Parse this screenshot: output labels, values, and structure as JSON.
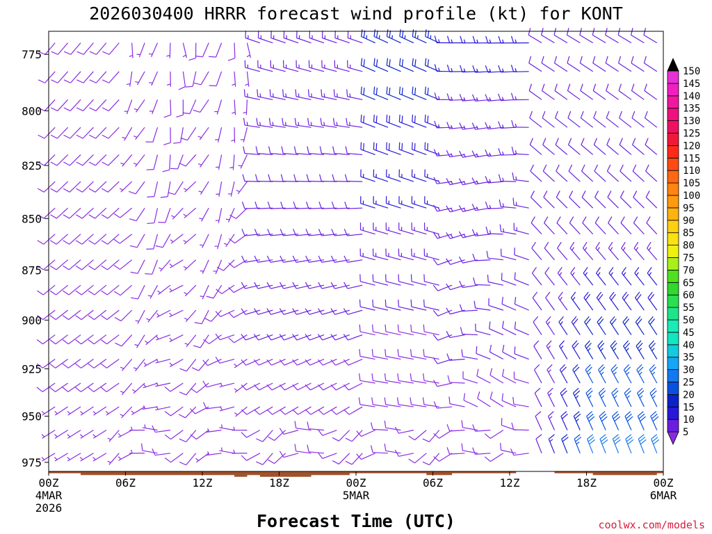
{
  "chart_data": {
    "type": "wind_barb_profile",
    "title": "2026030400 HRRR forecast wind profile (kt) for KONT",
    "xlabel": "Forecast Time (UTC)",
    "credit": "coolwx.com/models",
    "y_unit": "hPa",
    "ylim": [
      980,
      765
    ],
    "y_ticks": [
      775,
      800,
      825,
      850,
      875,
      900,
      925,
      950,
      975
    ],
    "xlim_hours": [
      0,
      48
    ],
    "x_ticks": [
      {
        "hour": 0,
        "lines": [
          "00Z",
          "4MAR",
          "2026"
        ]
      },
      {
        "hour": 6,
        "lines": [
          "06Z"
        ]
      },
      {
        "hour": 12,
        "lines": [
          "12Z"
        ]
      },
      {
        "hour": 18,
        "lines": [
          "18Z"
        ]
      },
      {
        "hour": 24,
        "lines": [
          "00Z",
          "5MAR"
        ]
      },
      {
        "hour": 30,
        "lines": [
          "06Z"
        ]
      },
      {
        "hour": 36,
        "lines": [
          "12Z"
        ]
      },
      {
        "hour": 42,
        "lines": [
          "18Z"
        ]
      },
      {
        "hour": 48,
        "lines": [
          "00Z",
          "6MAR"
        ]
      }
    ],
    "colorbar": {
      "label_unit": "kt",
      "levels": [
        5,
        10,
        15,
        20,
        25,
        30,
        35,
        40,
        45,
        50,
        55,
        60,
        65,
        70,
        75,
        80,
        85,
        90,
        95,
        100,
        105,
        110,
        115,
        120,
        125,
        130,
        135,
        140,
        145,
        150
      ],
      "colors": [
        "#8a2be2",
        "#6a1fe0",
        "#2a18d8",
        "#0a22c8",
        "#0850e0",
        "#1478f0",
        "#15a6f5",
        "#12cbe0",
        "#13e6c0",
        "#19ecb6",
        "#20e48a",
        "#28e050",
        "#30d830",
        "#50e020",
        "#a8f018",
        "#f0f010",
        "#f8e210",
        "#ffd010",
        "#ffb210",
        "#ff9a10",
        "#ff8410",
        "#ff6810",
        "#ff4a14",
        "#ff2a1a",
        "#f01838",
        "#f01060",
        "#f01080",
        "#f018a0",
        "#f020c0",
        "#e830d8"
      ]
    },
    "wind_barbs": {
      "units": "kt",
      "columns_hours": [
        0,
        1,
        2,
        3,
        4,
        5,
        6,
        7,
        8,
        9,
        10,
        11,
        12,
        13,
        14,
        15,
        16,
        17,
        18,
        19,
        20,
        21,
        22,
        23,
        24,
        25,
        26,
        27,
        28,
        29,
        30,
        31,
        32,
        33,
        34,
        35,
        36,
        37,
        38,
        39,
        40,
        41,
        42,
        43,
        44,
        45,
        46,
        47,
        48
      ],
      "description": "Barbs every 12.5 hPa from ~970 hPa up to 765 hPa. Light southwesterly winds (5-10 kt) dominate the low levels through hour 30; speeds increase to 20-30 kt from the northwest aloft around hours 26-30 and in the lower levels after hour 38, with north-northwest flow of 25-35 kt below 875 hPa by hours 40-48."
    },
    "terrain": {
      "label": "surface",
      "color": "#a0522d",
      "surface_pressure_hPa": [
        981,
        981,
        981,
        982,
        982,
        982,
        982,
        982,
        982,
        982,
        982,
        982,
        982,
        982,
        982,
        983,
        982,
        983,
        983,
        983,
        983,
        982,
        982,
        982,
        981,
        981,
        981,
        981,
        981,
        981,
        982,
        982,
        981,
        981,
        981,
        981,
        981,
        980,
        980,
        980,
        981,
        981,
        981,
        982,
        982,
        982,
        982,
        982,
        981
      ]
    }
  }
}
